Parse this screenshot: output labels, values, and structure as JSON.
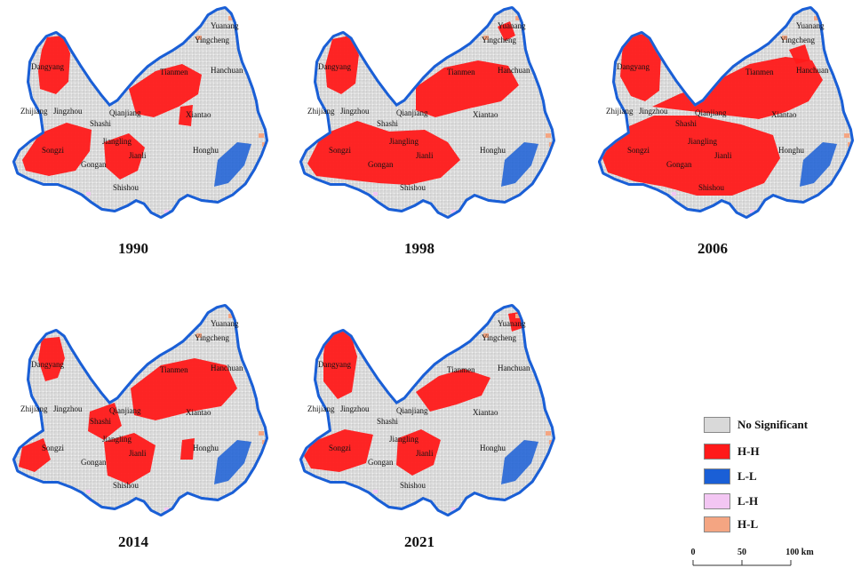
{
  "panels": [
    {
      "year": "1990",
      "cities": [
        "Yuanang",
        "Yingcheng",
        "Dangyang",
        "Hanchuan",
        "Tianmen",
        "Zhijiang",
        "Jingzhou",
        "Shashi",
        "Qianjiang",
        "Xiantao",
        "Songzi",
        "Jiangling",
        "Gongan",
        "Jianli",
        "Honghu",
        "Shishou"
      ]
    },
    {
      "year": "1998",
      "cities": [
        "Yuanang",
        "Yingcheng",
        "Dangyang",
        "Hanchuan",
        "Tianmen",
        "Zhijiang",
        "Jingzhou",
        "Shashi",
        "Qianjiang",
        "Xiantao",
        "Songzi",
        "Jiangling",
        "Gongan",
        "Jianli",
        "Honghu",
        "Shishou"
      ]
    },
    {
      "year": "2006",
      "cities": [
        "Yuanang",
        "Yingcheng",
        "Dangyang",
        "Hanchuan",
        "Tianmen",
        "Zhijiang",
        "Jingzhou",
        "Shashi",
        "Qianjiang",
        "Xiantao",
        "Songzi",
        "Jiangling",
        "Gongan",
        "Jianli",
        "Honghu",
        "Shishou"
      ]
    },
    {
      "year": "2014",
      "cities": [
        "Yuanang",
        "Yingcheng",
        "Dangyang",
        "Hanchuan",
        "Tianmen",
        "Zhijiang",
        "Jingzhou",
        "Shashi",
        "Qianjiang",
        "Xiantao",
        "Songzi",
        "Jiangling",
        "Gongan",
        "Jianli",
        "Honghu",
        "Shishou"
      ]
    },
    {
      "year": "2021",
      "cities": [
        "Yuanang",
        "Yingcheng",
        "Dangyang",
        "Hanchuan",
        "Tianmen",
        "Zhijiang",
        "Jingzhou",
        "Shashi",
        "Qianjiang",
        "Xiantao",
        "Songzi",
        "Jiangling",
        "Gongan",
        "Jianli",
        "Honghu",
        "Shishou"
      ]
    }
  ],
  "legend": [
    {
      "label": "No Significant",
      "color": "#d9d9d9"
    },
    {
      "label": "H-H",
      "color": "#ff1a1a"
    },
    {
      "label": "L-L",
      "color": "#1a5fd6"
    },
    {
      "label": "L-H",
      "color": "#f3c6f3"
    },
    {
      "label": "H-L",
      "color": "#f4a582"
    }
  ],
  "scale_bar": {
    "ticks": [
      "0",
      "50",
      "100 km"
    ]
  }
}
